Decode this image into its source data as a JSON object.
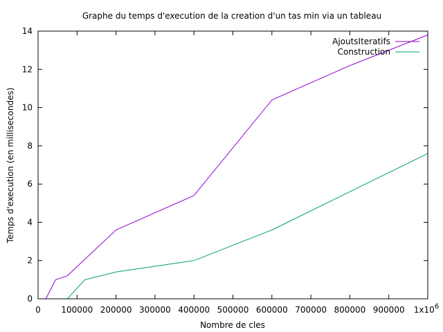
{
  "chart_data": {
    "type": "line",
    "title": "Graphe du temps d'execution de la creation d'un tas min via un tableau",
    "xlabel": "Nombre de cles",
    "ylabel": "Temps d'execution (en millisecondes)",
    "xlim": [
      0,
      1000000
    ],
    "ylim": [
      0,
      14
    ],
    "x_ticks": [
      0,
      100000,
      200000,
      300000,
      400000,
      500000,
      600000,
      700000,
      800000,
      900000,
      1000000
    ],
    "x_tick_labels": [
      "0",
      "100000",
      "200000",
      "300000",
      "400000",
      "500000",
      "600000",
      "700000",
      "800000",
      "900000",
      "1x10"
    ],
    "x_last_tick_exponent": "6",
    "y_ticks": [
      0,
      2,
      4,
      6,
      8,
      10,
      12,
      14
    ],
    "y_tick_labels": [
      "0",
      "2",
      "4",
      "6",
      "8",
      "10",
      "12",
      "14"
    ],
    "grid": false,
    "legend_position": "top-right",
    "series": [
      {
        "name": "AjoutsIteratifs",
        "color": "#9400d3",
        "x": [
          20000,
          45000,
          75000,
          200000,
          400000,
          600000,
          800000,
          1000000
        ],
        "y": [
          0,
          1.0,
          1.2,
          3.6,
          5.4,
          10.4,
          12.2,
          13.8
        ]
      },
      {
        "name": "Construction",
        "color": "#009e73",
        "x": [
          20000,
          45000,
          75000,
          120000,
          200000,
          400000,
          600000,
          800000,
          1000000
        ],
        "y": [
          0,
          0,
          0,
          1.0,
          1.4,
          2.0,
          3.6,
          5.6,
          7.6
        ]
      }
    ]
  }
}
